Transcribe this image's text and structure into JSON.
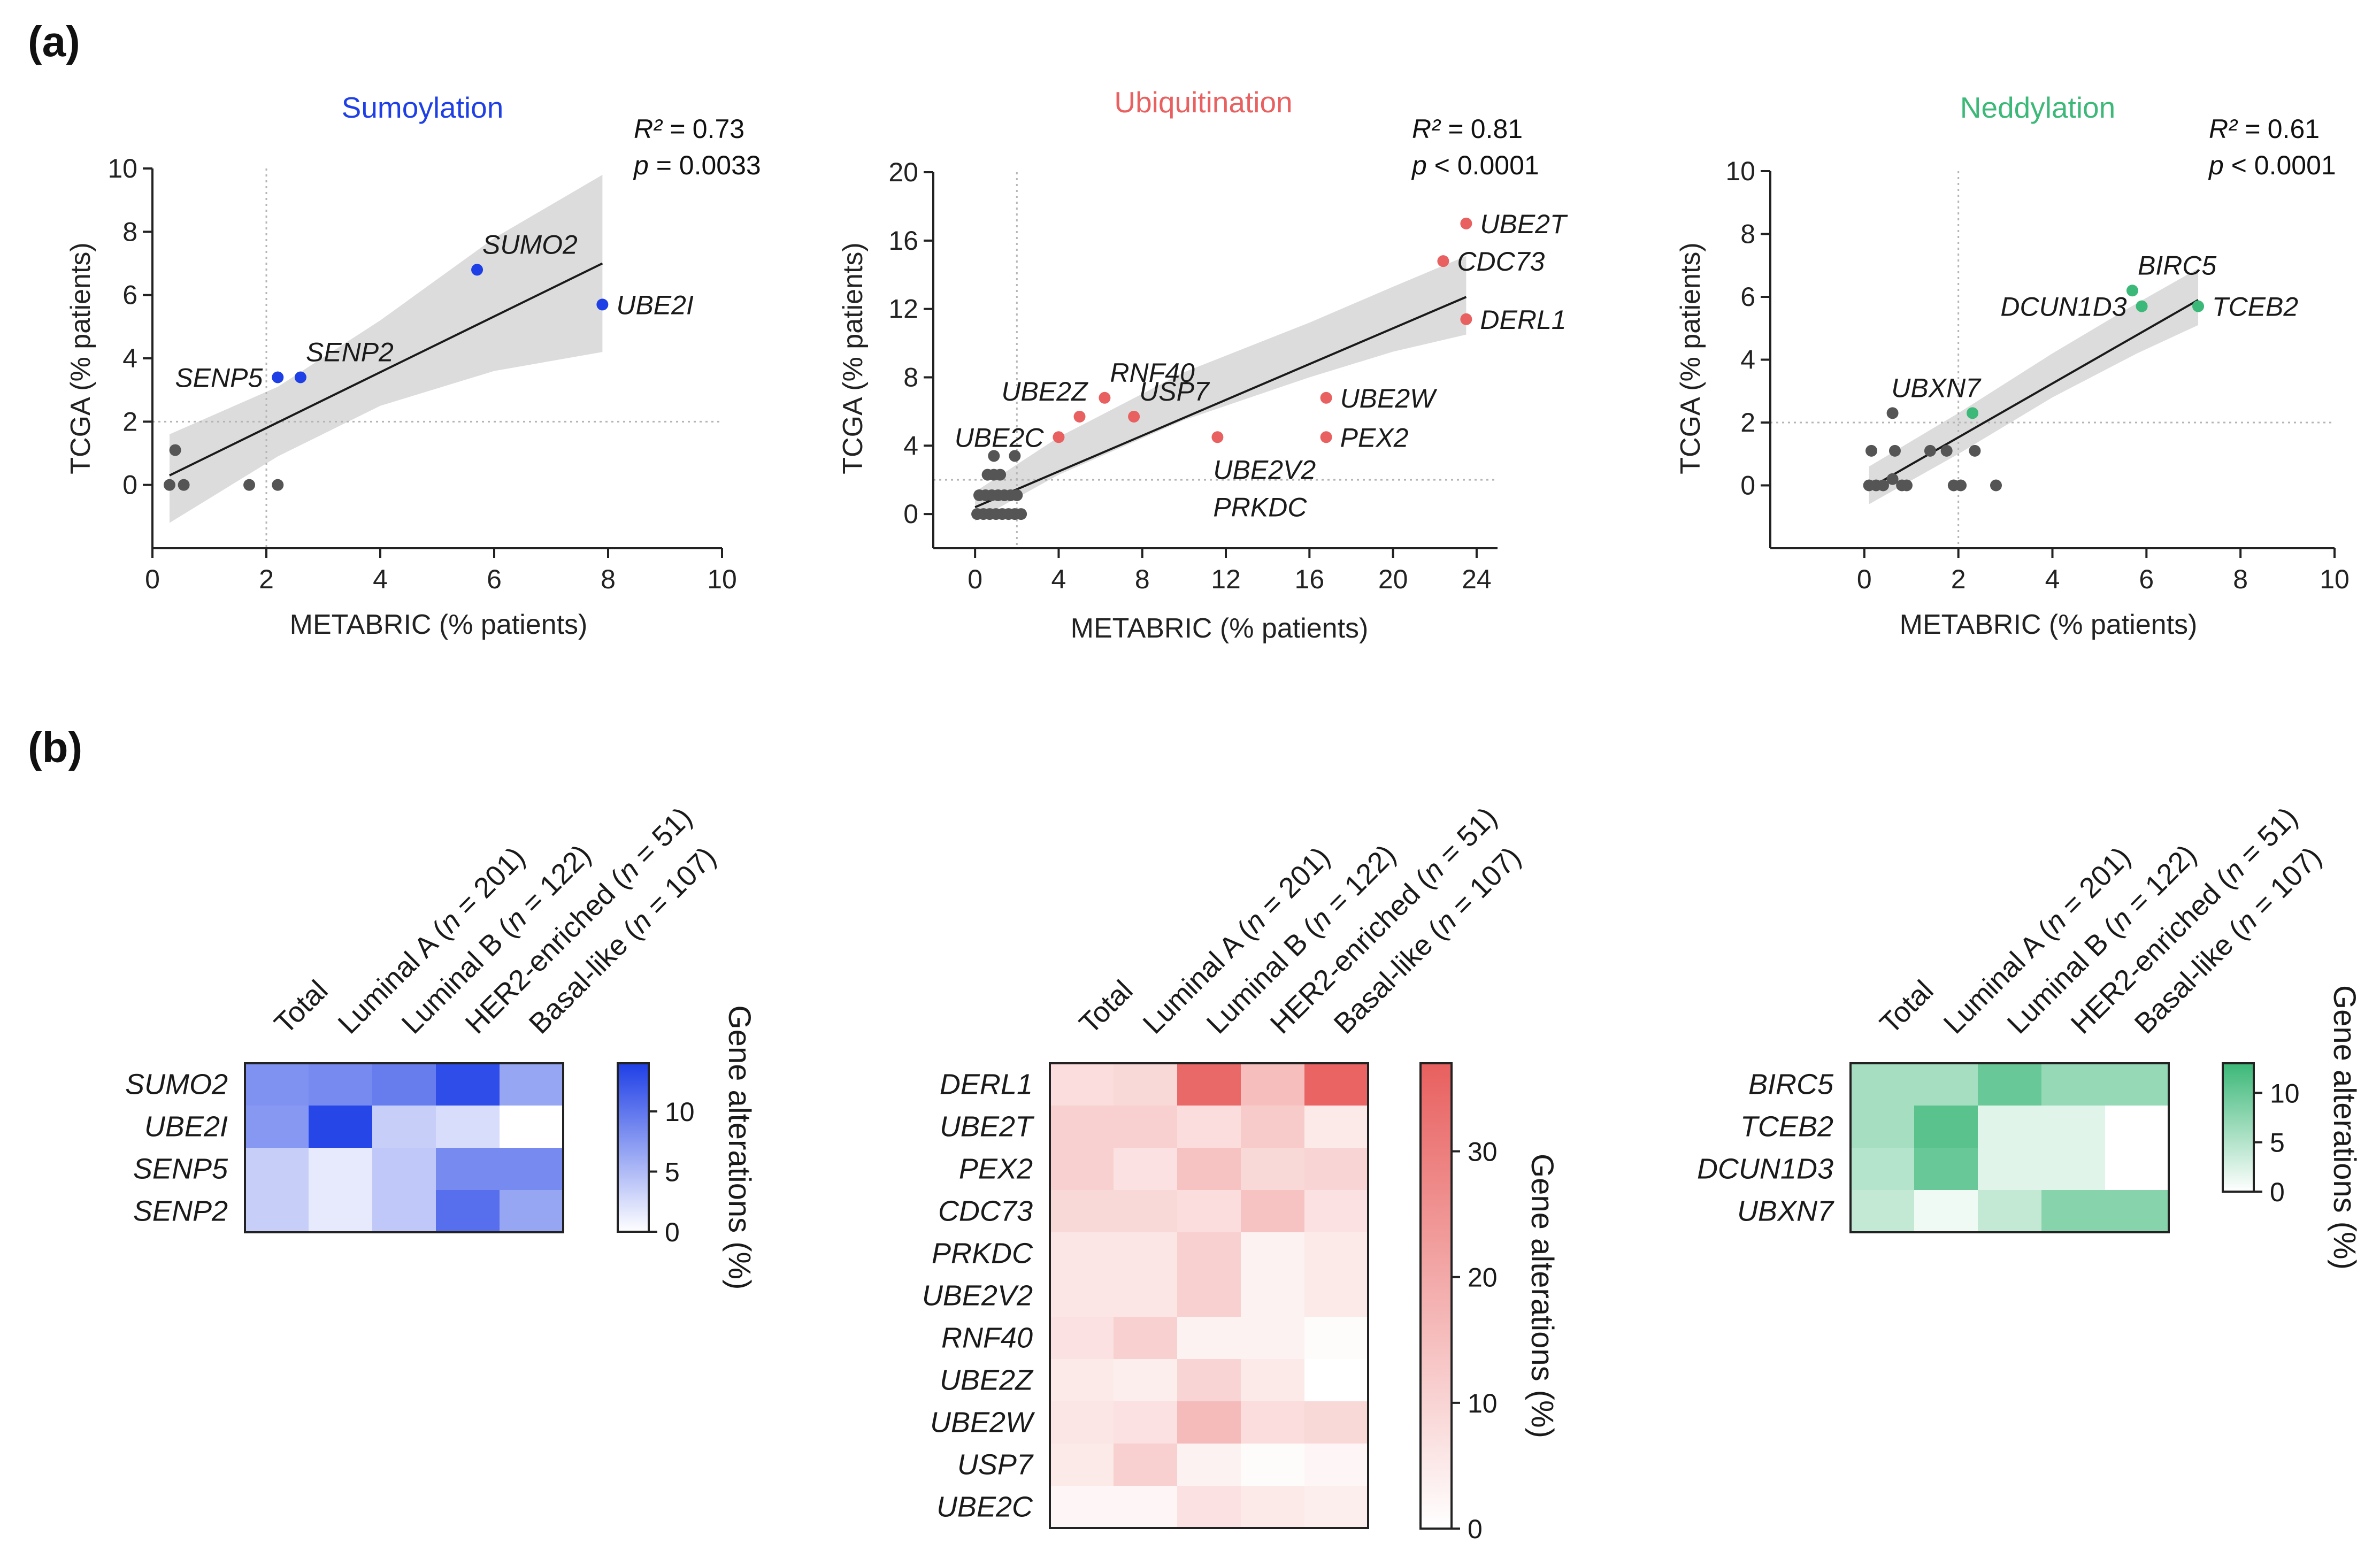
{
  "panels": {
    "a": "(a)",
    "b": "(b)"
  },
  "stat_labels": {
    "r2": "R² = ",
    "p": "p"
  },
  "colors": {
    "Sumoylation": "#1f3fe6",
    "Ubiquitination": "#e8605f",
    "Neddylation": "#3cb878",
    "below": "#555555",
    "band": "#dcdcdc",
    "line": "#1a1a1a"
  },
  "chart_data": [
    {
      "type": "scatter",
      "title": "Sumoylation",
      "xlabel": "METABRIC (% patients)",
      "ylabel": "TCGA (% patients)",
      "xlim": [
        0,
        10
      ],
      "ylim": [
        -2,
        10
      ],
      "xticks": [
        "0",
        "2",
        "4",
        "6",
        "8",
        "10"
      ],
      "yticks": [
        "0",
        "2",
        "4",
        "6",
        "8",
        "10"
      ],
      "threshold": {
        "x": 2,
        "y": 2
      },
      "r2": "0.73",
      "p": "= 0.0033",
      "fit": [
        [
          0.3,
          0.3
        ],
        [
          7.9,
          7.0
        ]
      ],
      "band": [
        [
          0.3,
          -1.2
        ],
        [
          2.2,
          0.9
        ],
        [
          4.0,
          2.5
        ],
        [
          6.0,
          3.6
        ],
        [
          7.9,
          4.2
        ],
        [
          7.9,
          9.8
        ],
        [
          6.0,
          7.8
        ],
        [
          4.0,
          5.2
        ],
        [
          2.2,
          3.1
        ],
        [
          0.3,
          1.6
        ]
      ],
      "points": [
        {
          "x": 0.3,
          "y": 0,
          "label": "",
          "hit": false
        },
        {
          "x": 0.4,
          "y": 1.1,
          "label": "",
          "hit": false
        },
        {
          "x": 0.55,
          "y": 0,
          "label": "",
          "hit": false
        },
        {
          "x": 1.7,
          "y": 0,
          "label": "",
          "hit": false
        },
        {
          "x": 2.2,
          "y": 0,
          "label": "",
          "hit": false
        },
        {
          "x": 2.2,
          "y": 3.4,
          "label": "SENP5",
          "hit": true,
          "lpos": "left"
        },
        {
          "x": 2.6,
          "y": 3.4,
          "label": "SENP2",
          "hit": true,
          "lpos": "upright"
        },
        {
          "x": 5.7,
          "y": 6.8,
          "label": "SUMO2",
          "hit": true,
          "lpos": "upright"
        },
        {
          "x": 7.9,
          "y": 5.7,
          "label": "UBE2I",
          "hit": true,
          "lpos": "right"
        }
      ]
    },
    {
      "type": "scatter",
      "title": "Ubiquitination",
      "xlabel": "METABRIC (% patients)",
      "ylabel": "TCGA (% patients)",
      "xlim": [
        -2,
        25
      ],
      "ylim": [
        -2,
        20
      ],
      "xticks": [
        "0",
        "4",
        "8",
        "12",
        "16",
        "20",
        "24"
      ],
      "yticks": [
        "0",
        "4",
        "8",
        "12",
        "16",
        "20"
      ],
      "threshold": {
        "x": 2,
        "y": 2
      },
      "r2": "0.81",
      "p": "< 0.0001",
      "fit": [
        [
          0,
          0.4
        ],
        [
          23.5,
          12.7
        ]
      ],
      "band": [
        [
          0,
          -0.4
        ],
        [
          4,
          2.3
        ],
        [
          10,
          5.5
        ],
        [
          16,
          8.0
        ],
        [
          20,
          9.5
        ],
        [
          23.5,
          10.5
        ],
        [
          23.5,
          15.1
        ],
        [
          20,
          13.3
        ],
        [
          16,
          11.2
        ],
        [
          10,
          8.3
        ],
        [
          4,
          4.5
        ],
        [
          0,
          1.3
        ]
      ],
      "points": [
        {
          "x": 0.1,
          "y": 0,
          "hit": false
        },
        {
          "x": 0.4,
          "y": 0,
          "hit": false
        },
        {
          "x": 0.7,
          "y": 0,
          "hit": false
        },
        {
          "x": 1.0,
          "y": 0,
          "hit": false
        },
        {
          "x": 1.3,
          "y": 0,
          "hit": false
        },
        {
          "x": 1.6,
          "y": 0,
          "hit": false
        },
        {
          "x": 1.9,
          "y": 0,
          "hit": false
        },
        {
          "x": 2.2,
          "y": 0,
          "hit": false
        },
        {
          "x": 0.2,
          "y": 1.1,
          "hit": false
        },
        {
          "x": 0.5,
          "y": 1.1,
          "hit": false
        },
        {
          "x": 0.8,
          "y": 1.1,
          "hit": false
        },
        {
          "x": 1.1,
          "y": 1.1,
          "hit": false
        },
        {
          "x": 1.4,
          "y": 1.1,
          "hit": false
        },
        {
          "x": 1.7,
          "y": 1.1,
          "hit": false
        },
        {
          "x": 2.0,
          "y": 1.1,
          "hit": false
        },
        {
          "x": 0.6,
          "y": 2.3,
          "hit": false
        },
        {
          "x": 0.9,
          "y": 2.3,
          "hit": false
        },
        {
          "x": 1.2,
          "y": 2.3,
          "hit": false
        },
        {
          "x": 0.9,
          "y": 3.4,
          "hit": false
        },
        {
          "x": 1.9,
          "y": 3.4,
          "hit": false
        },
        {
          "x": 4.0,
          "y": 4.5,
          "label": "UBE2C",
          "hit": true,
          "lpos": "left"
        },
        {
          "x": 5.0,
          "y": 5.7,
          "label": "UBE2Z",
          "hit": true,
          "lpos": "upleft"
        },
        {
          "x": 6.2,
          "y": 6.8,
          "label": "RNF40",
          "hit": true,
          "lpos": "upright"
        },
        {
          "x": 7.6,
          "y": 5.7,
          "label": "USP7",
          "hit": true,
          "lpos": "upright"
        },
        {
          "x": 11.6,
          "y": 4.5,
          "label": "UBE2V2",
          "hit": true,
          "lpos": "below"
        },
        {
          "x": 11.6,
          "y": 4.5,
          "label": "PRKDC",
          "hit": true,
          "lpos": "below2"
        },
        {
          "x": 16.8,
          "y": 6.8,
          "label": "UBE2W",
          "hit": true,
          "lpos": "right"
        },
        {
          "x": 16.8,
          "y": 4.5,
          "label": "PEX2",
          "hit": true,
          "lpos": "right"
        },
        {
          "x": 22.4,
          "y": 14.8,
          "label": "CDC73",
          "hit": true,
          "lpos": "right"
        },
        {
          "x": 23.5,
          "y": 17.0,
          "label": "UBE2T",
          "hit": true,
          "lpos": "right"
        },
        {
          "x": 23.5,
          "y": 11.4,
          "label": "DERL1",
          "hit": true,
          "lpos": "right"
        }
      ]
    },
    {
      "type": "scatter",
      "title": "Neddylation",
      "xlabel": "METABRIC (% patients)",
      "ylabel": "TCGA (% patients)",
      "xlim": [
        -2,
        10
      ],
      "ylim": [
        -2,
        10
      ],
      "xticks": [
        "0",
        "2",
        "4",
        "6",
        "8",
        "10"
      ],
      "yticks": [
        "0",
        "2",
        "4",
        "6",
        "8",
        "10"
      ],
      "threshold": {
        "x": 2,
        "y": 2
      },
      "r2": "0.61",
      "p": "< 0.0001",
      "fit": [
        [
          0.1,
          -0.1
        ],
        [
          7.1,
          5.9
        ]
      ],
      "band": [
        [
          0.1,
          -0.6
        ],
        [
          2.0,
          1.0
        ],
        [
          4.0,
          2.8
        ],
        [
          5.8,
          4.2
        ],
        [
          7.1,
          5.1
        ],
        [
          7.1,
          6.9
        ],
        [
          5.8,
          5.8
        ],
        [
          4.0,
          4.2
        ],
        [
          2.0,
          2.3
        ],
        [
          0.1,
          0.6
        ]
      ],
      "points": [
        {
          "x": 0.1,
          "y": 0,
          "hit": false
        },
        {
          "x": 0.25,
          "y": 0,
          "hit": false
        },
        {
          "x": 0.4,
          "y": 0,
          "hit": false
        },
        {
          "x": 0.8,
          "y": 0,
          "hit": false
        },
        {
          "x": 0.9,
          "y": 0,
          "hit": false
        },
        {
          "x": 1.9,
          "y": 0,
          "hit": false
        },
        {
          "x": 2.05,
          "y": 0,
          "hit": false
        },
        {
          "x": 2.8,
          "y": 0,
          "hit": false
        },
        {
          "x": 0.6,
          "y": 0.2,
          "hit": false
        },
        {
          "x": 0.15,
          "y": 1.1,
          "hit": false
        },
        {
          "x": 0.65,
          "y": 1.1,
          "hit": false
        },
        {
          "x": 1.4,
          "y": 1.1,
          "hit": false
        },
        {
          "x": 1.75,
          "y": 1.1,
          "hit": false
        },
        {
          "x": 2.35,
          "y": 1.1,
          "hit": false
        },
        {
          "x": 0.6,
          "y": 2.3,
          "hit": false
        },
        {
          "x": 2.3,
          "y": 2.3,
          "label": "UBXN7",
          "hit": true,
          "lpos": "upleft"
        },
        {
          "x": 5.7,
          "y": 6.2,
          "label": "BIRC5",
          "hit": true,
          "lpos": "upright"
        },
        {
          "x": 5.9,
          "y": 5.7,
          "label": "DCUN1D3",
          "hit": true,
          "lpos": "left"
        },
        {
          "x": 7.1,
          "y": 5.7,
          "label": "TCEB2",
          "hit": true,
          "lpos": "right"
        }
      ]
    },
    {
      "type": "heatmap",
      "columns": [
        "Total",
        "Luminal A (",
        "Luminal B (",
        "HER2-enriched (",
        "Basal-like ("
      ],
      "column_n": [
        "",
        "= 201)",
        "= 122)",
        "= 51)",
        "= 107)"
      ],
      "n_symbol": "n",
      "rows": [
        "SUMO2",
        "UBE2I",
        "SENP5",
        "SENP2"
      ],
      "values": [
        [
          8.0,
          8.5,
          9.5,
          13.0,
          6.5
        ],
        [
          7.5,
          13.5,
          3.5,
          2.5,
          0.0
        ],
        [
          3.5,
          1.5,
          4.0,
          8.5,
          8.5
        ],
        [
          3.5,
          1.5,
          4.0,
          10.5,
          6.5
        ]
      ],
      "colorbar": {
        "title": "Gene alterations (%)",
        "max": 14,
        "ticks": [
          0,
          5,
          10
        ]
      }
    },
    {
      "type": "heatmap",
      "columns": [
        "Total",
        "Luminal A (",
        "Luminal B (",
        "HER2-enriched (",
        "Basal-like ("
      ],
      "column_n": [
        "",
        "= 201)",
        "= 122)",
        "= 51)",
        "= 107)"
      ],
      "n_symbol": "n",
      "rows": [
        "DERL1",
        "UBE2T",
        "PEX2",
        "CDC73",
        "PRKDC",
        "UBE2V2",
        "RNF40",
        "UBE2Z",
        "UBE2W",
        "USP7",
        "UBE2C"
      ],
      "values": [
        [
          8,
          9,
          35,
          15,
          36
        ],
        [
          11,
          11,
          8,
          12,
          5
        ],
        [
          11,
          7,
          14,
          9,
          10
        ],
        [
          9,
          9,
          8,
          14,
          7
        ],
        [
          6,
          6,
          11,
          3,
          5
        ],
        [
          6,
          6,
          11,
          3,
          5
        ],
        [
          7,
          11,
          3,
          3,
          1
        ],
        [
          5,
          4,
          10,
          5,
          0
        ],
        [
          6,
          7,
          16,
          8,
          9
        ],
        [
          5,
          11,
          3,
          1,
          2
        ],
        [
          2,
          2,
          7,
          5,
          4
        ]
      ],
      "colorbar": {
        "title": "Gene alterations (%)",
        "max": 37,
        "ticks": [
          0,
          10,
          20,
          30
        ]
      }
    },
    {
      "type": "heatmap",
      "columns": [
        "Total",
        "Luminal A (",
        "Luminal B (",
        "HER2-enriched (",
        "Basal-like ("
      ],
      "column_n": [
        "",
        "= 201)",
        "= 122)",
        "= 51)",
        "= 107)"
      ],
      "n_symbol": "n",
      "rows": [
        "BIRC5",
        "TCEB2",
        "DCUN1D3",
        "UBXN7"
      ],
      "values": [
        [
          6,
          6,
          10,
          7,
          7
        ],
        [
          6,
          11,
          2,
          2,
          0
        ],
        [
          5,
          10,
          2,
          2,
          0
        ],
        [
          4,
          1,
          4,
          8,
          8
        ]
      ],
      "colorbar": {
        "title": "Gene alterations (%)",
        "max": 13,
        "ticks": [
          0,
          5,
          10
        ]
      }
    }
  ]
}
